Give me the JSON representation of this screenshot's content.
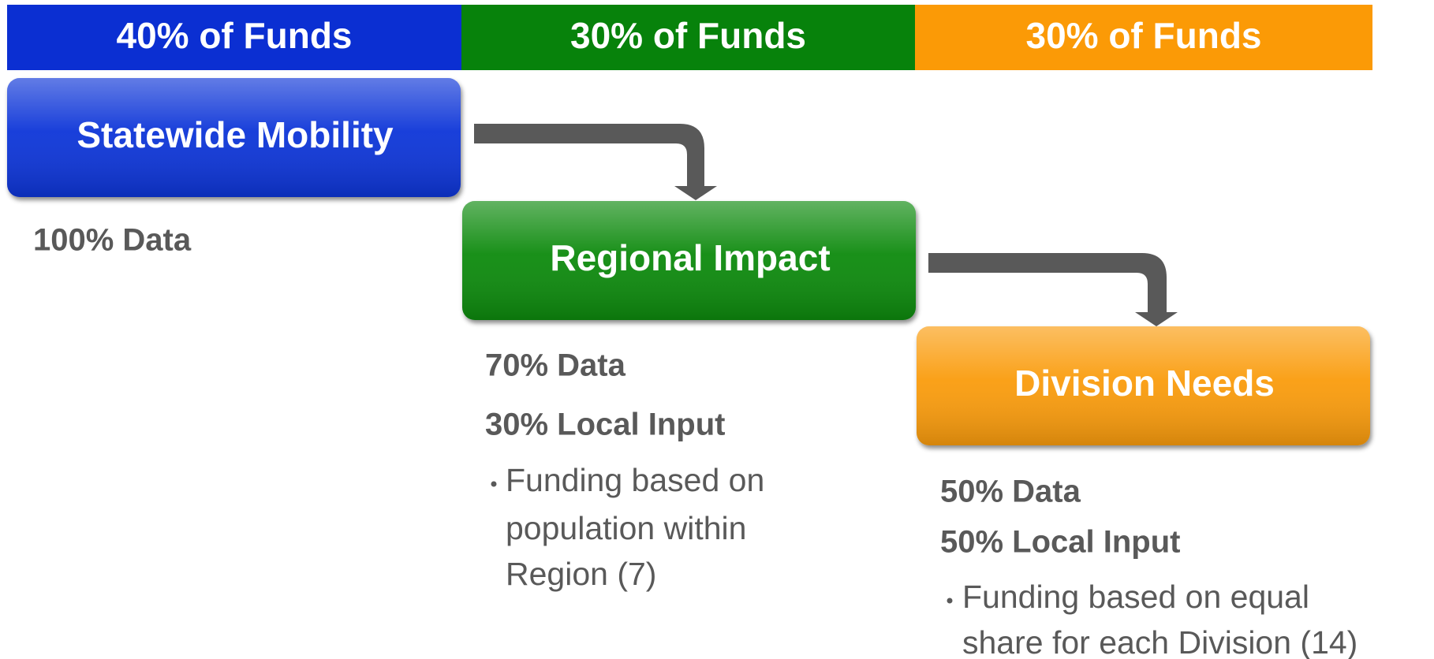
{
  "header": {
    "bands": [
      {
        "label": "40% of Funds",
        "color": "#0b2fd2"
      },
      {
        "label": "30% of Funds",
        "color": "#07820b"
      },
      {
        "label": "30% of Funds",
        "color": "#fb9a06"
      }
    ]
  },
  "tiers": [
    {
      "title": "Statewide Mobility",
      "color": "#0b36d8",
      "lines": [
        "100% Data"
      ],
      "bullet": []
    },
    {
      "title": "Regional Impact",
      "color": "#0b8a0d",
      "lines": [
        "70% Data",
        "30% Local Input"
      ],
      "bullet": [
        "Funding based on",
        "population within",
        "Region (7)"
      ]
    },
    {
      "title": "Division Needs",
      "color": "#fa9c0a",
      "lines": [
        "50% Data",
        "50% Local Input"
      ],
      "bullet": [
        "Funding based on equal",
        "share for each Division (14)"
      ]
    }
  ]
}
